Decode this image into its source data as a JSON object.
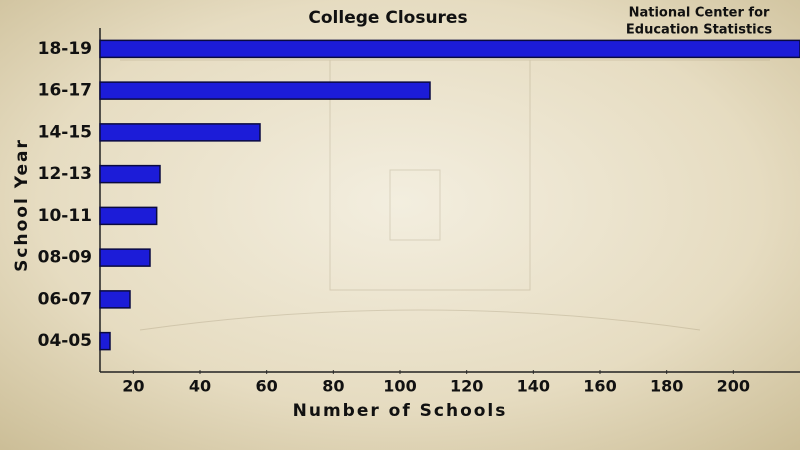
{
  "chart_data": {
    "type": "hbar",
    "title": "College Closures",
    "source": [
      "National Center for",
      "Education Statistics"
    ],
    "x_label": "Number of Schools",
    "y_label": "School Year",
    "categories": [
      "18-19",
      "16-17",
      "14-15",
      "12-13",
      "10-11",
      "08-09",
      "06-07",
      "04-05"
    ],
    "values": [
      220,
      109,
      58,
      28,
      27,
      25,
      19,
      13
    ],
    "color": "#1c1cd8",
    "xlim": [
      10,
      220
    ],
    "xticks": [
      20,
      40,
      60,
      80,
      100,
      120,
      140,
      160,
      180,
      200
    ]
  }
}
